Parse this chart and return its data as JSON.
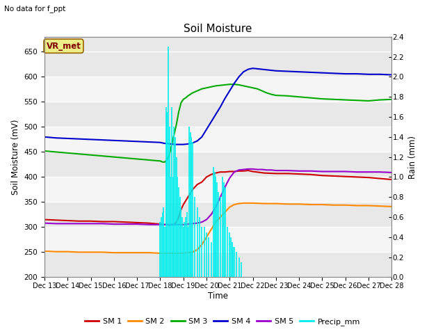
{
  "title": "Soil Moisture",
  "xlabel": "Time",
  "ylabel_left": "Soil Moisture (mV)",
  "ylabel_right": "Rain (mm)",
  "top_left_text": "No data for f_ppt",
  "vr_met_label": "VR_met",
  "ylim_left": [
    200,
    680
  ],
  "ylim_right": [
    0.0,
    2.4
  ],
  "yticks_left": [
    200,
    250,
    300,
    350,
    400,
    450,
    500,
    550,
    600,
    650
  ],
  "yticks_right": [
    0.0,
    0.2,
    0.4,
    0.6,
    0.8,
    1.0,
    1.2,
    1.4,
    1.6,
    1.8,
    2.0,
    2.2,
    2.4
  ],
  "x_start": 13,
  "x_end": 28,
  "xticks": [
    13,
    14,
    15,
    16,
    17,
    18,
    19,
    20,
    21,
    22,
    23,
    24,
    25,
    26,
    27,
    28
  ],
  "xtick_labels": [
    "Dec 13",
    "Dec 14",
    "Dec 15",
    "Dec 16",
    "Dec 17",
    "Dec 18",
    "Dec 19",
    "Dec 20",
    "Dec 21",
    "Dec 22",
    "Dec 23",
    "Dec 24",
    "Dec 25",
    "Dec 26",
    "Dec 27",
    "Dec 28"
  ],
  "colors": {
    "SM1": "#cc0000",
    "SM2": "#ff8800",
    "SM3": "#00aa00",
    "SM4": "#0000cc",
    "SM5": "#9900cc",
    "precip": "#00eeee",
    "bg_gray1": "#e8e8e8",
    "bg_gray2": "#f5f5f5",
    "bg_white": "#ffffff"
  },
  "sm1_x": [
    13,
    13.5,
    14,
    14.5,
    15,
    15.5,
    16,
    16.5,
    17,
    17.5,
    18,
    18.1,
    18.2,
    18.3,
    18.4,
    18.5,
    18.6,
    18.7,
    18.8,
    18.9,
    19,
    19.2,
    19.4,
    19.6,
    19.8,
    20,
    20.2,
    20.4,
    20.6,
    20.8,
    21,
    21.2,
    21.4,
    21.6,
    21.8,
    22,
    22.5,
    23,
    23.5,
    24,
    24.5,
    25,
    25.5,
    26,
    26.5,
    27,
    27.5,
    28
  ],
  "sm1_y": [
    315,
    314,
    313,
    312,
    312,
    311,
    311,
    310,
    309,
    308,
    306,
    305,
    305,
    305,
    304,
    305,
    306,
    310,
    320,
    335,
    345,
    360,
    375,
    385,
    390,
    400,
    405,
    408,
    410,
    410,
    411,
    411,
    412,
    412,
    413,
    411,
    408,
    407,
    407,
    406,
    405,
    403,
    402,
    401,
    400,
    399,
    397,
    395
  ],
  "sm2_x": [
    13,
    13.5,
    14,
    14.5,
    15,
    15.5,
    16,
    16.5,
    17,
    17.5,
    18,
    18.2,
    18.4,
    18.6,
    18.8,
    19,
    19.2,
    19.4,
    19.6,
    19.8,
    20,
    20.2,
    20.4,
    20.6,
    20.8,
    21,
    21.2,
    21.4,
    21.6,
    21.8,
    22,
    22.5,
    23,
    23.5,
    24,
    24.5,
    25,
    25.5,
    26,
    26.5,
    27,
    27.5,
    28
  ],
  "sm2_y": [
    252,
    251,
    251,
    250,
    250,
    250,
    249,
    249,
    249,
    249,
    248,
    248,
    248,
    248,
    248,
    248,
    249,
    250,
    255,
    265,
    280,
    295,
    310,
    320,
    330,
    340,
    345,
    347,
    348,
    348,
    348,
    347,
    347,
    346,
    346,
    345,
    345,
    344,
    344,
    343,
    343,
    342,
    341
  ],
  "sm3_x": [
    13,
    13.5,
    14,
    14.5,
    15,
    15.5,
    16,
    16.5,
    17,
    17.5,
    18,
    18.1,
    18.2,
    18.3,
    18.4,
    18.5,
    18.6,
    18.7,
    18.8,
    18.9,
    19,
    19.1,
    19.2,
    19.3,
    19.4,
    19.5,
    19.6,
    19.7,
    19.8,
    19.9,
    20,
    20.2,
    20.4,
    20.6,
    20.8,
    21,
    21.2,
    21.4,
    21.6,
    21.8,
    22,
    22.2,
    22.4,
    22.6,
    22.8,
    23,
    23.5,
    24,
    24.5,
    25,
    25.5,
    26,
    26.5,
    27,
    27.5,
    28
  ],
  "sm3_y": [
    452,
    450,
    448,
    446,
    444,
    442,
    440,
    438,
    436,
    434,
    432,
    430,
    430,
    435,
    445,
    465,
    485,
    505,
    530,
    548,
    555,
    558,
    562,
    565,
    568,
    570,
    572,
    574,
    576,
    577,
    578,
    580,
    582,
    583,
    584,
    585,
    585,
    584,
    582,
    580,
    578,
    576,
    572,
    568,
    565,
    563,
    562,
    560,
    558,
    556,
    555,
    554,
    553,
    552,
    554,
    555
  ],
  "sm4_x": [
    13,
    13.5,
    14,
    14.5,
    15,
    15.5,
    16,
    16.5,
    17,
    17.5,
    18,
    18.1,
    18.2,
    18.3,
    18.4,
    18.5,
    18.6,
    18.7,
    18.8,
    18.9,
    19,
    19.2,
    19.4,
    19.6,
    19.8,
    20,
    20.2,
    20.4,
    20.6,
    20.8,
    21,
    21.2,
    21.4,
    21.6,
    21.8,
    22,
    22.2,
    22.4,
    22.6,
    22.8,
    23,
    23.5,
    24,
    24.5,
    25,
    25.5,
    26,
    26.5,
    27,
    27.5,
    28
  ],
  "sm4_y": [
    480,
    478,
    477,
    476,
    475,
    474,
    473,
    472,
    471,
    470,
    469,
    468,
    467,
    467,
    466,
    466,
    465,
    465,
    465,
    465,
    465,
    466,
    468,
    472,
    480,
    495,
    510,
    525,
    540,
    557,
    572,
    587,
    600,
    610,
    615,
    617,
    616,
    615,
    614,
    613,
    612,
    611,
    610,
    609,
    608,
    607,
    606,
    606,
    605,
    605,
    604
  ],
  "sm5_x": [
    13,
    13.5,
    14,
    14.5,
    15,
    15.5,
    16,
    16.5,
    17,
    17.5,
    18,
    18.1,
    18.2,
    18.3,
    18.4,
    18.5,
    18.6,
    18.7,
    18.8,
    18.9,
    19,
    19.2,
    19.4,
    19.6,
    19.8,
    20,
    20.2,
    20.4,
    20.6,
    20.8,
    21,
    21.2,
    21.4,
    21.6,
    21.8,
    22,
    22.2,
    22.4,
    22.6,
    22.8,
    23,
    23.5,
    24,
    24.5,
    25,
    25.5,
    26,
    26.5,
    27,
    27.5,
    28
  ],
  "sm5_y": [
    308,
    307,
    307,
    307,
    307,
    307,
    306,
    306,
    306,
    305,
    305,
    305,
    305,
    305,
    305,
    305,
    305,
    305,
    305,
    305,
    305,
    306,
    307,
    308,
    310,
    315,
    325,
    340,
    360,
    380,
    398,
    410,
    414,
    415,
    416,
    416,
    415,
    415,
    414,
    414,
    413,
    413,
    412,
    412,
    411,
    411,
    411,
    410,
    410,
    410,
    409
  ],
  "precip_events": [
    [
      18.0,
      0.55
    ],
    [
      18.05,
      0.6
    ],
    [
      18.1,
      0.65
    ],
    [
      18.15,
      0.7
    ],
    [
      18.2,
      0.5
    ],
    [
      18.25,
      1.7
    ],
    [
      18.3,
      1.65
    ],
    [
      18.35,
      2.3
    ],
    [
      18.4,
      1.5
    ],
    [
      18.45,
      1.0
    ],
    [
      18.5,
      1.7
    ],
    [
      18.55,
      1.0
    ],
    [
      18.6,
      1.5
    ],
    [
      18.65,
      1.4
    ],
    [
      18.7,
      1.2
    ],
    [
      18.75,
      1.0
    ],
    [
      18.8,
      0.9
    ],
    [
      18.85,
      0.8
    ],
    [
      18.9,
      0.7
    ],
    [
      18.95,
      0.6
    ],
    [
      19.0,
      0.5
    ],
    [
      19.05,
      0.55
    ],
    [
      19.1,
      0.6
    ],
    [
      19.15,
      0.65
    ],
    [
      19.2,
      0.5
    ],
    [
      19.25,
      1.5
    ],
    [
      19.3,
      1.45
    ],
    [
      19.35,
      1.4
    ],
    [
      19.4,
      1.35
    ],
    [
      19.5,
      0.8
    ],
    [
      19.6,
      0.7
    ],
    [
      19.7,
      0.6
    ],
    [
      19.8,
      0.5
    ],
    [
      19.9,
      0.5
    ],
    [
      20.0,
      0.45
    ],
    [
      20.1,
      0.4
    ],
    [
      20.2,
      0.35
    ],
    [
      20.3,
      1.1
    ],
    [
      20.35,
      1.05
    ],
    [
      20.4,
      1.0
    ],
    [
      20.45,
      0.95
    ],
    [
      20.5,
      0.85
    ],
    [
      20.6,
      0.8
    ],
    [
      20.7,
      1.0
    ],
    [
      20.75,
      0.95
    ],
    [
      20.8,
      0.9
    ],
    [
      20.9,
      0.5
    ],
    [
      21.0,
      0.45
    ],
    [
      21.05,
      0.4
    ],
    [
      21.1,
      0.35
    ],
    [
      21.15,
      0.3
    ],
    [
      21.2,
      0.3
    ],
    [
      21.3,
      0.25
    ],
    [
      21.4,
      0.2
    ],
    [
      21.5,
      0.15
    ]
  ]
}
